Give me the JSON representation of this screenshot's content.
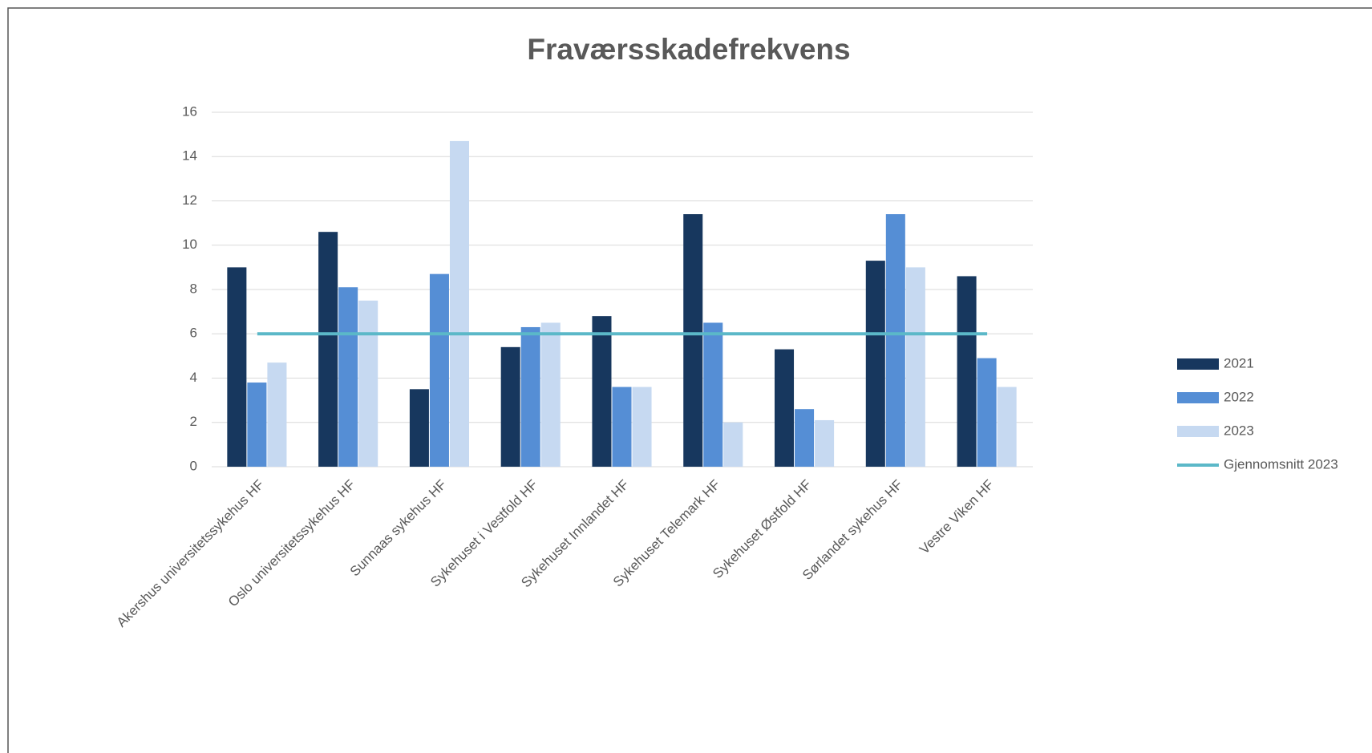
{
  "chart_data": {
    "type": "bar",
    "title": "Fraværsskadefrekvens",
    "categories": [
      "Akershus universitetssykehus HF",
      "Oslo universitetssykehus HF",
      "Sunnaas sykehus HF",
      "Sykehuset i Vestfold HF",
      "Sykehuset Innlandet HF",
      "Sykehuset Telemark HF",
      "Sykehuset Østfold HF",
      "Sørlandet sykehus HF",
      "Vestre Viken HF"
    ],
    "series": [
      {
        "name": "2021",
        "color": "#17375e",
        "values": [
          9.0,
          10.6,
          3.5,
          5.4,
          6.8,
          11.4,
          5.3,
          9.3,
          8.6
        ]
      },
      {
        "name": "2022",
        "color": "#558ed5",
        "values": [
          3.8,
          8.1,
          8.7,
          6.3,
          3.6,
          6.5,
          2.6,
          11.4,
          4.9
        ]
      },
      {
        "name": "2023",
        "color": "#c6d9f1",
        "values": [
          4.7,
          7.5,
          14.7,
          6.5,
          3.6,
          2.0,
          2.1,
          9.0,
          3.6
        ]
      },
      {
        "name": "Gjennomsnitt 2023",
        "type": "line",
        "color": "#5bb8c8",
        "values": [
          6,
          6,
          6,
          6,
          6,
          6,
          6,
          6,
          6
        ]
      }
    ],
    "ylim": [
      0,
      16
    ],
    "yticks": [
      0,
      2,
      4,
      6,
      8,
      10,
      12,
      14,
      16
    ],
    "grid": true,
    "legend": "right"
  }
}
